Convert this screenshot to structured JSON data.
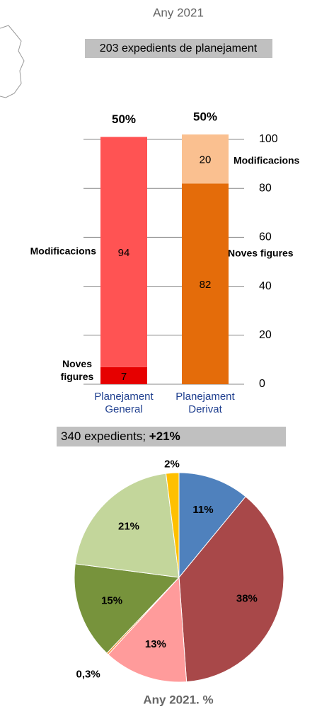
{
  "chart_data": [
    {
      "type": "stacked_bar",
      "title": "Any 2021",
      "subtitle": "203 expedients de planejament",
      "categories": [
        "Planejament General",
        "Planejament Derivat"
      ],
      "series": [
        {
          "name": "Noves figures",
          "colors": [
            "#e60000",
            "#e46c0a"
          ],
          "values": [
            7,
            82
          ]
        },
        {
          "name": "Modificacions",
          "colors": [
            "#ff5353",
            "#fac090"
          ],
          "values": [
            94,
            20
          ]
        }
      ],
      "shares": {
        "values": [
          50,
          50
        ],
        "value_labels": [
          "50%",
          "50%"
        ]
      },
      "ylim": [
        0,
        100
      ],
      "yticks": [
        0,
        20,
        40,
        60,
        80,
        100
      ],
      "grid": true
    },
    {
      "type": "pie",
      "title": "340 expedients;",
      "title_emphasis": "+21%",
      "caption": "Any 2021. %",
      "values": [
        11,
        38,
        13,
        0.3,
        15,
        21,
        2
      ],
      "value_labels": [
        "11%",
        "38%",
        "13%",
        "0,3%",
        "15%",
        "21%",
        "2%"
      ],
      "colors": [
        "#4f81bd",
        "#a84849",
        "#ff9b9b",
        "#f79646",
        "#77933c",
        "#c3d69b",
        "#ffc000"
      ]
    }
  ]
}
